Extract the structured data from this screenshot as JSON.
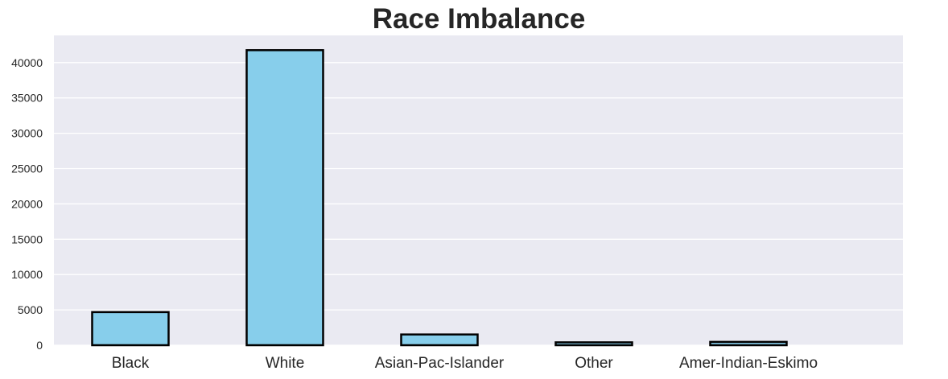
{
  "chart_data": {
    "type": "bar",
    "title": "Race Imbalance",
    "xlabel": "",
    "ylabel": "",
    "categories": [
      "Black",
      "White",
      "Asian-Pac-Islander",
      "Other",
      "Amer-Indian-Eskimo"
    ],
    "values": [
      4685,
      41762,
      1519,
      406,
      470
    ],
    "ylim": [
      0,
      43850
    ],
    "yticks": [
      0,
      5000,
      10000,
      15000,
      20000,
      25000,
      30000,
      35000,
      40000
    ],
    "ytick_labels": [
      "0",
      "5000",
      "10000",
      "15000",
      "20000",
      "25000",
      "30000",
      "35000",
      "40000"
    ],
    "grid": true,
    "legend": "none",
    "colors": {
      "background": "#eaeaf2",
      "grid": "#ffffff",
      "bar_fill": "#87ceeb",
      "bar_edge": "#000000",
      "text": "#262626"
    }
  }
}
